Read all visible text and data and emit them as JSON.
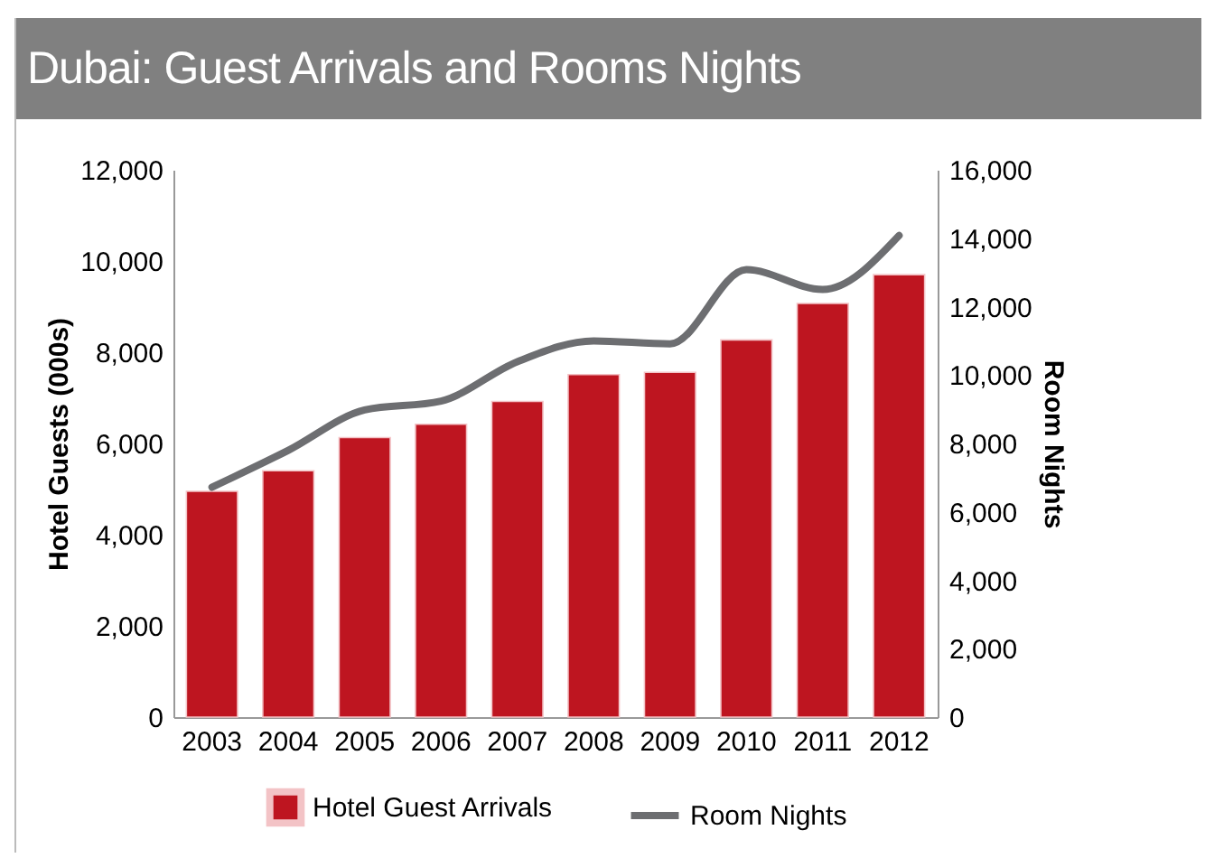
{
  "chart_data": {
    "type": "bar",
    "title": "Dubai: Guest Arrivals and Rooms Nights",
    "ylabel": "Hotel Guests (000s)",
    "y2label": "Room Nights",
    "categories": [
      "2003",
      "2004",
      "2005",
      "2006",
      "2007",
      "2008",
      "2009",
      "2010",
      "2011",
      "2012"
    ],
    "series": [
      {
        "name": "Hotel Guest Arrivals",
        "color": "#be1520",
        "values": [
          4950,
          5400,
          6130,
          6420,
          6920,
          7510,
          7560,
          8270,
          9070,
          9700
        ]
      },
      {
        "name": "Room Nights",
        "color": "#6d6e71",
        "type": "line",
        "axis": "y2",
        "values": [
          6720,
          7800,
          8980,
          9240,
          10390,
          11000,
          10910,
          13080,
          12500,
          14080
        ]
      }
    ],
    "ylim": [
      0,
      12000
    ],
    "yticks": [
      0,
      {
        "value": 2000,
        "label": "2,000"
      },
      {
        "value": 4000,
        "label": "4,000"
      },
      {
        "value": 6000,
        "label": "6,000"
      },
      {
        "value": 8000,
        "label": "8,000"
      },
      {
        "value": 10000,
        "label": "10,000"
      },
      {
        "value": 12000,
        "label": "12,000"
      }
    ],
    "y2lim": [
      0,
      16000
    ],
    "y2ticks": [
      0,
      {
        "value": 2000,
        "label": "2,000"
      },
      {
        "value": 4000,
        "label": "4,000"
      },
      {
        "value": 6000,
        "label": "6,000"
      },
      {
        "value": 8000,
        "label": "8,000"
      },
      {
        "value": 10000,
        "label": "10,000"
      },
      {
        "value": 12000,
        "label": "12,000"
      },
      {
        "value": 14000,
        "label": "14,000"
      },
      {
        "value": 16000,
        "label": "16,000"
      }
    ],
    "grid": false,
    "legend": "bottom",
    "marker": "none",
    "line_style": "solid"
  }
}
